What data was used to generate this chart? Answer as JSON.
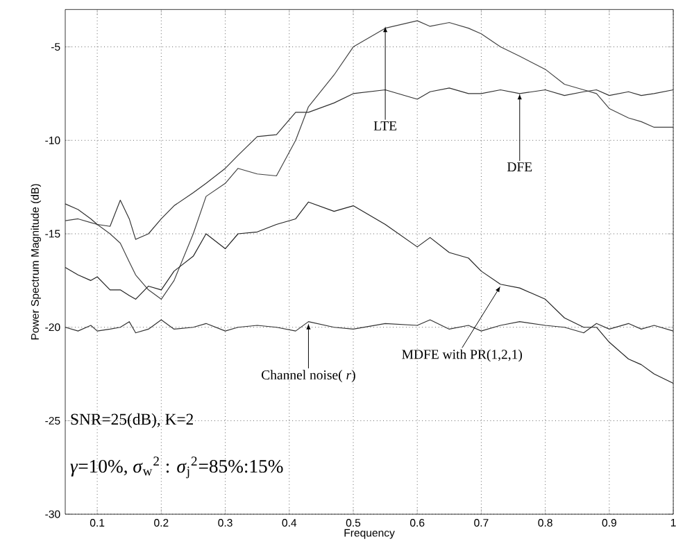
{
  "chart_data": {
    "type": "line",
    "xlabel": "Frequency",
    "ylabel": "Power Spectrum Magnitude (dB)",
    "x": [
      0.05,
      0.07,
      0.09,
      0.1,
      0.12,
      0.136,
      0.15,
      0.16,
      0.18,
      0.2,
      0.22,
      0.25,
      0.27,
      0.3,
      0.32,
      0.35,
      0.38,
      0.41,
      0.43,
      0.47,
      0.5,
      0.55,
      0.6,
      0.62,
      0.65,
      0.68,
      0.7,
      0.73,
      0.76,
      0.8,
      0.83,
      0.86,
      0.88,
      0.9,
      0.93,
      0.95,
      0.97,
      1.0
    ],
    "series": [
      {
        "color": "#404040",
        "values": [
          -14.3,
          -14.2,
          -14.4,
          -14.5,
          -15.0,
          -15.5,
          -16.5,
          -17.2,
          -18.0,
          -18.5,
          -17.5,
          -15.0,
          -13.0,
          -12.3,
          -11.5,
          -11.8,
          -11.9,
          -10.0,
          -8.2,
          -6.5,
          -5.0,
          -4.0,
          -3.6,
          -3.9,
          -3.7,
          -4.0,
          -4.3,
          -5.0,
          -5.5,
          -6.2,
          -7.0,
          -7.3,
          -7.5,
          -8.3,
          -8.8,
          -9.0,
          -9.3,
          -9.3
        ]
      },
      {
        "color": "#303030",
        "values": [
          -13.4,
          -13.7,
          -14.2,
          -14.5,
          -14.6,
          -13.2,
          -14.2,
          -15.3,
          -15.0,
          -14.2,
          -13.5,
          -12.8,
          -12.3,
          -11.5,
          -10.8,
          -9.8,
          -9.7,
          -8.5,
          -8.5,
          -8.0,
          -7.5,
          -7.3,
          -7.8,
          -7.4,
          -7.2,
          -7.5,
          -7.5,
          -7.3,
          -7.5,
          -7.3,
          -7.6,
          -7.4,
          -7.3,
          -7.6,
          -7.4,
          -7.6,
          -7.5,
          -7.3
        ]
      },
      {
        "color": "#202020",
        "values": [
          -16.8,
          -17.2,
          -17.5,
          -17.3,
          -18.0,
          -18.0,
          -18.3,
          -18.5,
          -17.8,
          -18.0,
          -17.0,
          -16.2,
          -15.0,
          -15.8,
          -15.0,
          -14.9,
          -14.5,
          -14.2,
          -13.3,
          -13.8,
          -13.5,
          -14.5,
          -15.7,
          -15.2,
          -16.0,
          -16.3,
          -17.0,
          -17.7,
          -17.9,
          -18.5,
          -19.5,
          -20.0,
          -20.0,
          -20.8,
          -21.7,
          -22.0,
          -22.5,
          -23.0
        ]
      },
      {
        "color": "#303030",
        "values": [
          -20.0,
          -20.2,
          -19.9,
          -20.2,
          -20.1,
          -20.0,
          -19.7,
          -20.3,
          -20.1,
          -19.6,
          -20.1,
          -20.0,
          -19.8,
          -20.2,
          -20.0,
          -19.9,
          -20.0,
          -20.2,
          -19.7,
          -20.0,
          -20.1,
          -19.8,
          -19.9,
          -19.6,
          -20.1,
          -19.9,
          -20.2,
          -19.9,
          -19.7,
          -19.9,
          -20.0,
          -20.3,
          -19.8,
          -20.1,
          -19.8,
          -20.1,
          -19.9,
          -20.2
        ]
      }
    ],
    "xlim": [
      0.05,
      1
    ],
    "ylim": [
      -30,
      -3
    ],
    "xticks": [
      0.1,
      0.2,
      0.3,
      0.4,
      0.5,
      0.6,
      0.7,
      0.8,
      0.9,
      1
    ],
    "yticks": [
      -30,
      -25,
      -20,
      -15,
      -10,
      -5
    ],
    "grid": true,
    "marker": "none",
    "line_style": "solid",
    "annotations": [
      {
        "text": "LTE",
        "x": 0.55,
        "y": -3.9
      },
      {
        "text": "DFE",
        "x": 0.76,
        "y": -7.5
      },
      {
        "text": "MDFE with PR(1,2,1)",
        "x": 0.73,
        "y": -17.8
      },
      {
        "text": "Channel noise( *r*)",
        "x": 0.43,
        "y": -19.8
      },
      "SNR=25(dB), K=2",
      "*γ*=10%, *σ*$_{w}$$^{2}$ : *σ*$_{j}$$^{2}$=85%:15%"
    ]
  }
}
